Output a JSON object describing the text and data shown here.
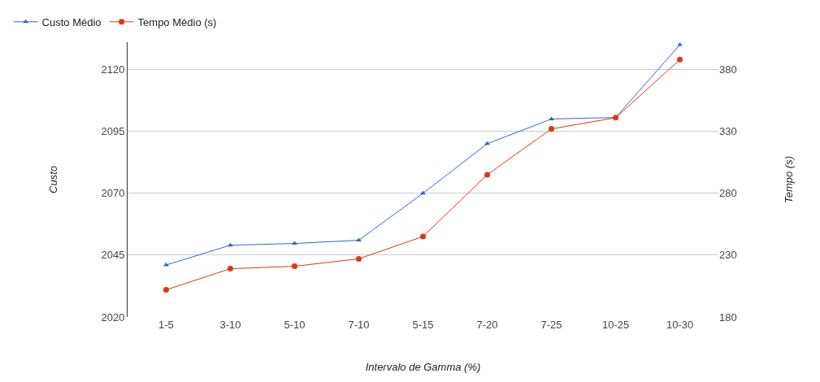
{
  "chart_data": {
    "type": "line",
    "xlabel": "Intervalo de Gamma (%)",
    "ylabel": "Custo",
    "y2label": "Tempo (s)",
    "categories": [
      "1-5",
      "3-10",
      "5-10",
      "7-10",
      "5-15",
      "7-20",
      "7-25",
      "10-25",
      "10-30"
    ],
    "series": [
      {
        "name": "Custo Médio",
        "color": "#3366cc",
        "marker": "triangle",
        "values": [
          2041,
          2049,
          2049.7,
          2051,
          2070,
          2090,
          2100,
          2100.6,
          2130
        ]
      },
      {
        "name": "Tempo Médio (s)",
        "color": "#dc3912",
        "marker": "circle",
        "axis": "y2",
        "values": [
          202,
          219,
          221,
          227,
          245,
          295,
          332,
          341,
          388
        ]
      }
    ],
    "ylim": [
      2020,
      2131
    ],
    "yticks": [
      2020,
      2045,
      2070,
      2095,
      2120
    ],
    "y2lim": [
      180,
      402
    ],
    "y2ticks": [
      180,
      230,
      280,
      330,
      380
    ],
    "grid": "y",
    "legend": "top left",
    "line_style": "solid"
  }
}
